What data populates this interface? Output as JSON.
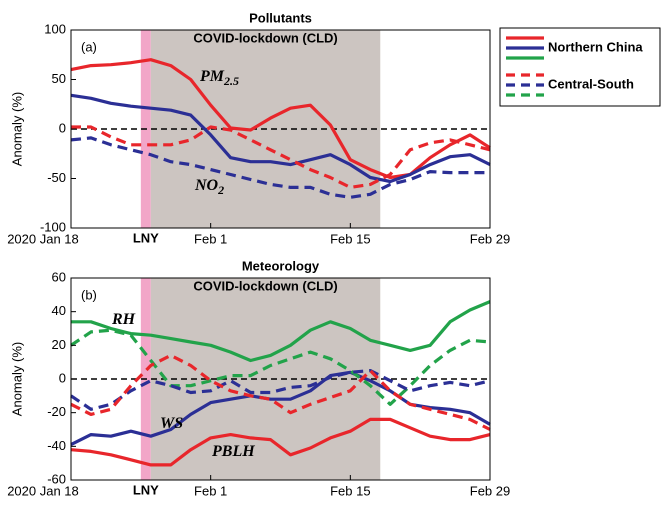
{
  "chart_data": [
    {
      "type": "line",
      "title": "Pollutants",
      "panel_label": "(a)",
      "ylabel": "Anomaly (%)",
      "x": [
        0,
        2,
        4,
        6,
        8,
        10,
        12,
        14,
        16,
        18,
        20,
        22,
        24,
        26,
        28,
        30,
        32,
        34,
        36,
        38,
        40,
        42
      ],
      "xlim": [
        0,
        42
      ],
      "xticks": [
        {
          "value": 0,
          "label": "2020 Jan 18"
        },
        {
          "value": 14,
          "label": "Feb 1"
        },
        {
          "value": 28,
          "label": "Feb 15"
        },
        {
          "value": 42,
          "label": "Feb 29"
        }
      ],
      "ylim": [
        -100,
        100
      ],
      "yticks": [
        100,
        50,
        0,
        -50,
        -100
      ],
      "zero_line": true,
      "spans": [
        {
          "label": "LNY",
          "start": 7,
          "end": 8,
          "color": "#f2a6c8",
          "label_color": "#e9559a"
        },
        {
          "label": "COVID-lockdown (CLD)",
          "start": 8,
          "end": 31,
          "color": "#ccc5c1",
          "label_color": "#5a5a5a"
        }
      ],
      "annotations": [
        {
          "text": "PM",
          "sub": "2.5",
          "color": "#e8262b"
        },
        {
          "text": "NO",
          "sub": "2",
          "color": "#2b2f95"
        }
      ],
      "series": [
        {
          "name": "Northern China",
          "color": "#e8262b",
          "dashed": false,
          "values": [
            60,
            64,
            65,
            67,
            70,
            64,
            50,
            24,
            1,
            -1,
            11,
            21,
            24,
            4,
            -31,
            -41,
            -49,
            -46,
            -29,
            -16,
            -6,
            -19
          ]
        },
        {
          "name": "Northern China",
          "color": "#2b2f95",
          "dashed": false,
          "values": [
            34,
            31,
            26,
            23,
            21,
            19,
            14,
            -6,
            -29,
            -33,
            -33,
            -36,
            -31,
            -26,
            -36,
            -49,
            -53,
            -46,
            -36,
            -28,
            -26,
            -36
          ]
        },
        {
          "name": "Central-South",
          "color": "#e8262b",
          "dashed": true,
          "values": [
            2,
            2,
            -8,
            -16,
            -16,
            -16,
            -11,
            2,
            -1,
            -11,
            -21,
            -31,
            -41,
            -49,
            -59,
            -56,
            -46,
            -21,
            -14,
            -11,
            -16,
            -21
          ]
        },
        {
          "name": "Central-South",
          "color": "#2b2f95",
          "dashed": true,
          "values": [
            -11,
            -9,
            -16,
            -21,
            -26,
            -33,
            -36,
            -41,
            -46,
            -51,
            -56,
            -59,
            -59,
            -66,
            -69,
            -66,
            -56,
            -51,
            -43,
            -44,
            -44,
            -44
          ]
        }
      ],
      "legend": {
        "position": "right",
        "entries": [
          {
            "label": "Northern China",
            "colors": [
              "#e8262b",
              "#2b2f95",
              "#22a34a"
            ],
            "dashed": false
          },
          {
            "label": "Central-South",
            "colors": [
              "#e8262b",
              "#2b2f95",
              "#22a34a"
            ],
            "dashed": true
          }
        ]
      }
    },
    {
      "type": "line",
      "title": "Meteorology",
      "panel_label": "(b)",
      "ylabel": "Anomaly (%)",
      "x": [
        0,
        2,
        4,
        6,
        8,
        10,
        12,
        14,
        16,
        18,
        20,
        22,
        24,
        26,
        28,
        30,
        32,
        34,
        36,
        38,
        40,
        42
      ],
      "xlim": [
        0,
        42
      ],
      "xticks": [
        {
          "value": 0,
          "label": "2020 Jan 18"
        },
        {
          "value": 14,
          "label": "Feb 1"
        },
        {
          "value": 28,
          "label": "Feb 15"
        },
        {
          "value": 42,
          "label": "Feb 29"
        }
      ],
      "ylim": [
        -60,
        60
      ],
      "yticks": [
        60,
        40,
        20,
        0,
        -20,
        -40,
        -60
      ],
      "zero_line": true,
      "spans": [
        {
          "label": "LNY",
          "start": 7,
          "end": 8,
          "color": "#f2a6c8",
          "label_color": "#e9559a"
        },
        {
          "label": "COVID-lockdown (CLD)",
          "start": 8,
          "end": 31,
          "color": "#ccc5c1",
          "label_color": "#5a5a5a"
        }
      ],
      "annotations": [
        {
          "text": "RH",
          "color": "#22a34a"
        },
        {
          "text": "WS",
          "color": "#2b2f95"
        },
        {
          "text": "PBLH",
          "color": "#e8262b"
        }
      ],
      "series": [
        {
          "name": "Northern China",
          "color": "#22a34a",
          "dashed": false,
          "values": [
            34,
            34,
            30,
            27,
            26,
            24,
            22,
            20,
            16,
            11,
            14,
            20,
            29,
            34,
            30,
            23,
            20,
            17,
            20,
            34,
            41,
            46
          ]
        },
        {
          "name": "Northern China",
          "color": "#2b2f95",
          "dashed": false,
          "values": [
            -39,
            -33,
            -34,
            -31,
            -34,
            -30,
            -21,
            -14,
            -12,
            -10,
            -12,
            -12,
            -7,
            2,
            4,
            -1,
            -7,
            -15,
            -17,
            -18,
            -20,
            -27
          ]
        },
        {
          "name": "Northern China",
          "color": "#e8262b",
          "dashed": false,
          "values": [
            -42,
            -43,
            -45,
            -48,
            -51,
            -51,
            -42,
            -35,
            -33,
            -35,
            -36,
            -45,
            -41,
            -35,
            -31,
            -24,
            -24,
            -29,
            -34,
            -36,
            -36,
            -33
          ]
        },
        {
          "name": "Central-South",
          "color": "#22a34a",
          "dashed": true,
          "values": [
            20,
            28,
            29,
            26,
            11,
            -4,
            -4,
            -1,
            2,
            2,
            8,
            12,
            16,
            12,
            5,
            -4,
            -15,
            -4,
            8,
            17,
            23,
            22
          ]
        },
        {
          "name": "Central-South",
          "color": "#2b2f95",
          "dashed": true,
          "values": [
            -10,
            -18,
            -15,
            -7,
            -1,
            -4,
            -8,
            -7,
            -1,
            -8,
            -8,
            -5,
            -4,
            1,
            4,
            5,
            -1,
            -7,
            -4,
            -2,
            -4,
            -1
          ]
        },
        {
          "name": "Central-South",
          "color": "#e8262b",
          "dashed": true,
          "values": [
            -15,
            -21,
            -18,
            -4,
            8,
            14,
            8,
            -1,
            -7,
            -10,
            -12,
            -20,
            -15,
            -11,
            -7,
            5,
            -7,
            -15,
            -18,
            -21,
            -24,
            -30
          ]
        }
      ]
    }
  ]
}
